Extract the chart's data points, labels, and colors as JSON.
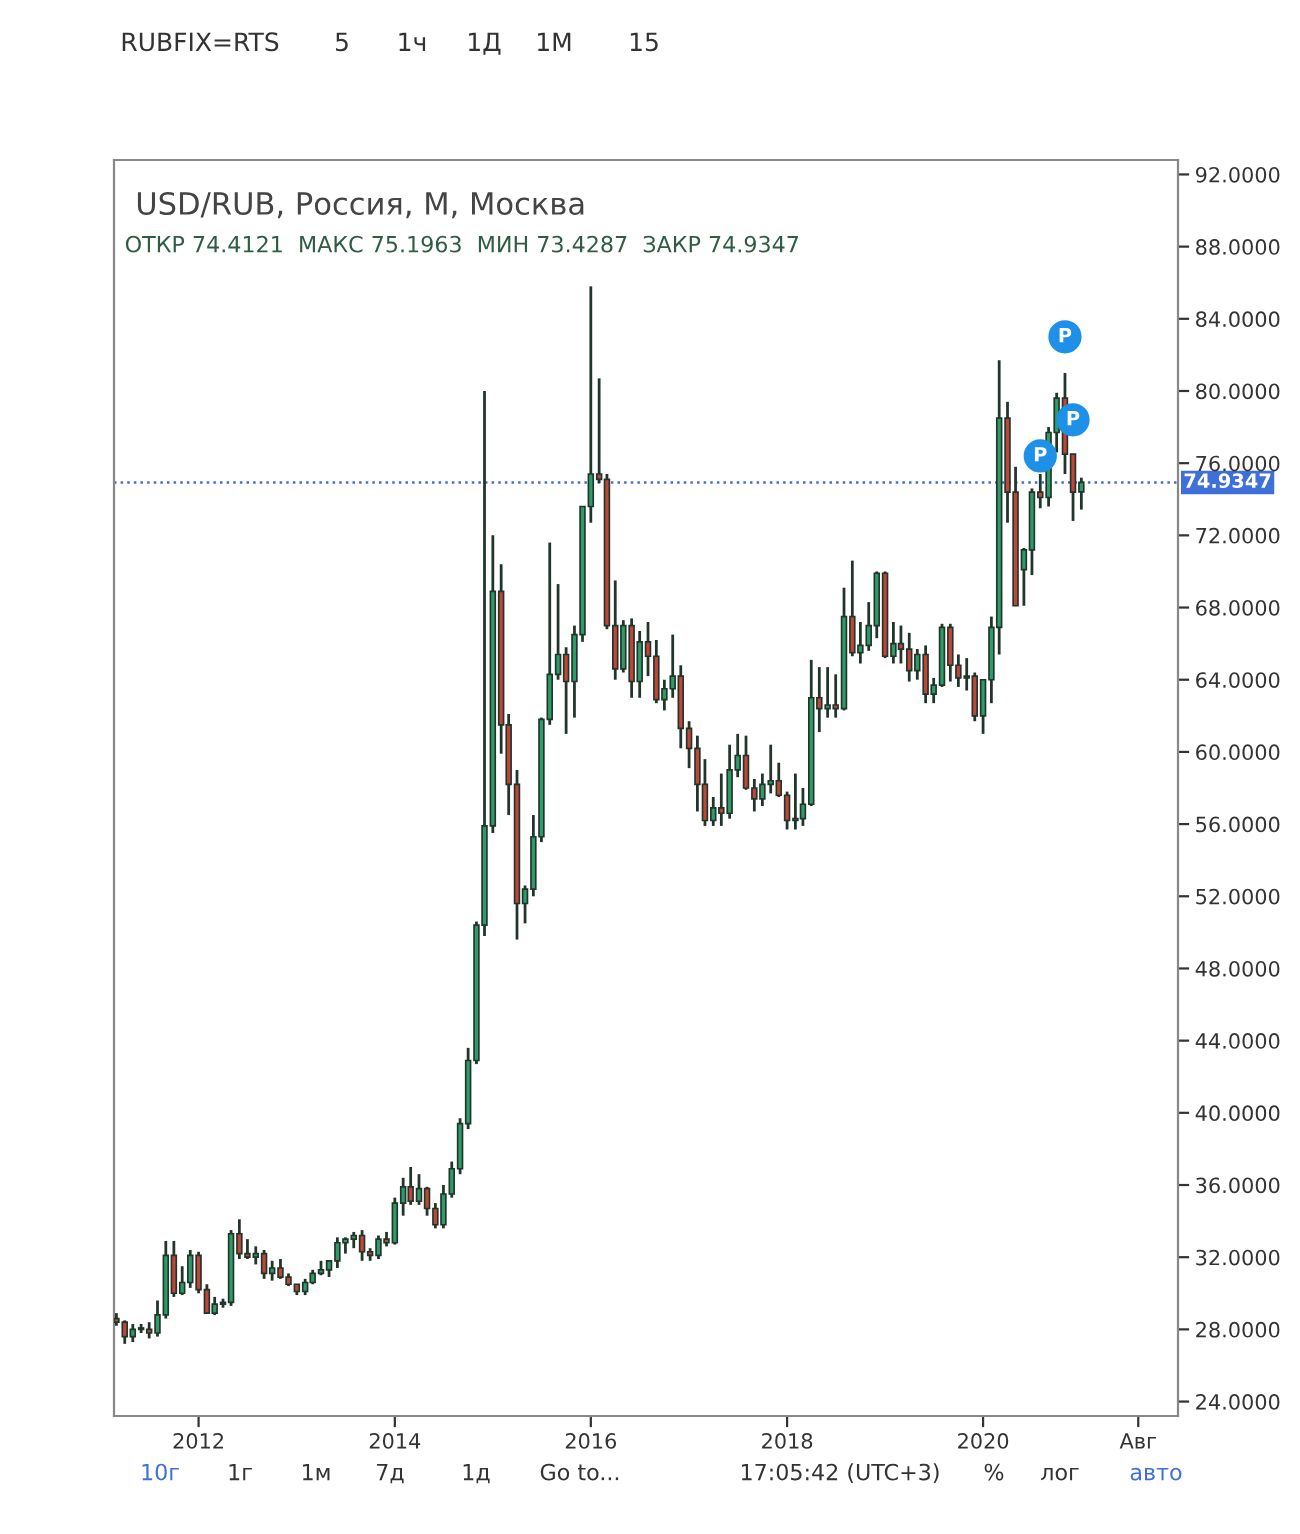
{
  "chart_data": {
    "type": "candlestick",
    "title": "USD/RUB, Россия, M, Москва",
    "subtitle": "ОТКР 74.4121  МАКС 75.1963  МИН 73.4287  ЗАКР 74.9347",
    "x": [
      "2011-03",
      "2011-04",
      "2011-05",
      "2011-06",
      "2011-07",
      "2011-08",
      "2011-09",
      "2011-10",
      "2011-11",
      "2011-12",
      "2012-01",
      "2012-02",
      "2012-03",
      "2012-04",
      "2012-05",
      "2012-06",
      "2012-07",
      "2012-08",
      "2012-09",
      "2012-10",
      "2012-11",
      "2012-12",
      "2013-01",
      "2013-02",
      "2013-03",
      "2013-04",
      "2013-05",
      "2013-06",
      "2013-07",
      "2013-08",
      "2013-09",
      "2013-10",
      "2013-11",
      "2013-12",
      "2014-01",
      "2014-02",
      "2014-03",
      "2014-04",
      "2014-05",
      "2014-06",
      "2014-07",
      "2014-08",
      "2014-09",
      "2014-10",
      "2014-11",
      "2014-12",
      "2015-01",
      "2015-02",
      "2015-03",
      "2015-04",
      "2015-05",
      "2015-06",
      "2015-07",
      "2015-08",
      "2015-09",
      "2015-10",
      "2015-11",
      "2015-12",
      "2016-01",
      "2016-02",
      "2016-03",
      "2016-04",
      "2016-05",
      "2016-06",
      "2016-07",
      "2016-08",
      "2016-09",
      "2016-10",
      "2016-11",
      "2016-12",
      "2017-01",
      "2017-02",
      "2017-03",
      "2017-04",
      "2017-05",
      "2017-06",
      "2017-07",
      "2017-08",
      "2017-09",
      "2017-10",
      "2017-11",
      "2017-12",
      "2018-01",
      "2018-02",
      "2018-03",
      "2018-04",
      "2018-05",
      "2018-06",
      "2018-07",
      "2018-08",
      "2018-09",
      "2018-10",
      "2018-11",
      "2018-12",
      "2019-01",
      "2019-02",
      "2019-03",
      "2019-04",
      "2019-05",
      "2019-06",
      "2019-07",
      "2019-08",
      "2019-09",
      "2019-10",
      "2019-11",
      "2019-12",
      "2020-01",
      "2020-02",
      "2020-03",
      "2020-04",
      "2020-05",
      "2020-06",
      "2020-07",
      "2020-08",
      "2020-09",
      "2020-10",
      "2020-11",
      "2020-12",
      "2021-01"
    ],
    "ohlc": [
      [
        28.6,
        28.9,
        28.2,
        28.4
      ],
      [
        28.4,
        28.5,
        27.2,
        27.6
      ],
      [
        27.6,
        28.3,
        27.3,
        28.0
      ],
      [
        28.0,
        28.3,
        27.8,
        28.0
      ],
      [
        28.0,
        28.4,
        27.5,
        27.8
      ],
      [
        27.8,
        29.6,
        27.6,
        28.8
      ],
      [
        28.8,
        32.9,
        28.6,
        32.1
      ],
      [
        32.1,
        32.9,
        29.8,
        30.0
      ],
      [
        30.0,
        31.5,
        29.9,
        30.6
      ],
      [
        30.6,
        32.4,
        30.3,
        32.1
      ],
      [
        32.1,
        32.3,
        30.0,
        30.2
      ],
      [
        30.2,
        30.5,
        28.9,
        28.9
      ],
      [
        28.9,
        29.8,
        28.8,
        29.4
      ],
      [
        29.4,
        29.7,
        29.2,
        29.5
      ],
      [
        29.5,
        33.5,
        29.3,
        33.3
      ],
      [
        33.3,
        34.1,
        31.9,
        32.2
      ],
      [
        32.2,
        33.0,
        31.9,
        32.0
      ],
      [
        32.0,
        32.6,
        31.6,
        32.2
      ],
      [
        32.2,
        32.4,
        30.8,
        31.1
      ],
      [
        31.1,
        31.8,
        30.7,
        31.4
      ],
      [
        31.4,
        31.9,
        30.8,
        30.9
      ],
      [
        30.9,
        31.1,
        30.4,
        30.5
      ],
      [
        30.5,
        30.5,
        29.9,
        30.1
      ],
      [
        30.1,
        30.8,
        29.9,
        30.6
      ],
      [
        30.6,
        31.3,
        30.5,
        31.1
      ],
      [
        31.1,
        31.8,
        31.0,
        31.3
      ],
      [
        31.3,
        31.8,
        30.9,
        31.8
      ],
      [
        31.8,
        33.1,
        31.4,
        32.8
      ],
      [
        32.8,
        33.1,
        32.2,
        33.0
      ],
      [
        33.0,
        33.4,
        32.5,
        33.2
      ],
      [
        33.2,
        33.5,
        31.8,
        32.3
      ],
      [
        32.3,
        32.5,
        31.8,
        32.1
      ],
      [
        32.1,
        33.2,
        31.9,
        33.0
      ],
      [
        33.0,
        33.4,
        32.6,
        32.8
      ],
      [
        32.8,
        35.3,
        32.7,
        35.0
      ],
      [
        35.0,
        36.4,
        34.3,
        35.9
      ],
      [
        35.9,
        37.0,
        34.9,
        35.1
      ],
      [
        35.1,
        36.6,
        34.9,
        35.8
      ],
      [
        35.8,
        35.9,
        34.3,
        34.7
      ],
      [
        34.7,
        35.0,
        33.6,
        33.8
      ],
      [
        33.8,
        36.0,
        33.6,
        35.5
      ],
      [
        35.5,
        37.3,
        35.3,
        36.9
      ],
      [
        36.9,
        39.7,
        36.6,
        39.4
      ],
      [
        39.4,
        43.6,
        39.1,
        42.9
      ],
      [
        42.9,
        50.6,
        42.7,
        50.4
      ],
      [
        50.4,
        80.0,
        49.8,
        55.9
      ],
      [
        55.9,
        72.0,
        55.5,
        68.9
      ],
      [
        68.9,
        70.4,
        59.9,
        61.5
      ],
      [
        61.5,
        62.1,
        56.5,
        58.2
      ],
      [
        58.2,
        59.0,
        49.6,
        51.6
      ],
      [
        51.6,
        52.6,
        50.5,
        52.4
      ],
      [
        52.4,
        56.5,
        52.0,
        55.3
      ],
      [
        55.3,
        61.9,
        55.0,
        61.8
      ],
      [
        61.8,
        71.6,
        61.5,
        64.3
      ],
      [
        64.3,
        69.3,
        64.0,
        65.4
      ],
      [
        65.4,
        65.8,
        61.0,
        63.9
      ],
      [
        63.9,
        67.0,
        61.9,
        66.5
      ],
      [
        66.5,
        73.6,
        66.1,
        73.6
      ],
      [
        73.6,
        85.8,
        72.7,
        75.4
      ],
      [
        75.4,
        80.7,
        74.9,
        75.1
      ],
      [
        75.1,
        75.4,
        66.8,
        67.0
      ],
      [
        67.0,
        69.5,
        64.0,
        64.6
      ],
      [
        64.6,
        67.3,
        64.4,
        67.0
      ],
      [
        67.0,
        67.4,
        63.0,
        63.9
      ],
      [
        63.9,
        66.7,
        63.0,
        66.1
      ],
      [
        66.1,
        67.2,
        64.2,
        65.3
      ],
      [
        65.3,
        66.2,
        62.7,
        62.9
      ],
      [
        62.9,
        64.0,
        62.3,
        63.5
      ],
      [
        63.5,
        66.5,
        63.0,
        64.2
      ],
      [
        64.2,
        64.8,
        60.2,
        61.3
      ],
      [
        61.3,
        61.7,
        59.1,
        60.2
      ],
      [
        60.2,
        60.9,
        56.7,
        58.2
      ],
      [
        58.2,
        59.6,
        55.9,
        56.2
      ],
      [
        56.2,
        57.5,
        55.9,
        56.9
      ],
      [
        56.9,
        58.8,
        55.9,
        56.6
      ],
      [
        56.6,
        60.4,
        56.3,
        59.0
      ],
      [
        59.0,
        61.0,
        58.6,
        59.8
      ],
      [
        59.8,
        60.9,
        57.9,
        58.0
      ],
      [
        58.0,
        58.5,
        56.7,
        57.4
      ],
      [
        57.4,
        58.8,
        57.0,
        58.2
      ],
      [
        58.2,
        60.4,
        57.7,
        58.4
      ],
      [
        58.4,
        59.4,
        57.5,
        57.6
      ],
      [
        57.6,
        57.8,
        55.7,
        56.2
      ],
      [
        56.2,
        58.8,
        55.7,
        56.3
      ],
      [
        56.3,
        58.0,
        55.9,
        57.1
      ],
      [
        57.1,
        65.1,
        57.0,
        63.0
      ],
      [
        63.0,
        64.7,
        61.1,
        62.4
      ],
      [
        62.4,
        64.7,
        61.9,
        62.6
      ],
      [
        62.6,
        64.3,
        61.9,
        62.4
      ],
      [
        62.4,
        69.1,
        62.3,
        67.5
      ],
      [
        67.5,
        70.6,
        65.3,
        65.5
      ],
      [
        65.5,
        67.2,
        64.9,
        65.9
      ],
      [
        65.9,
        68.3,
        65.6,
        67.0
      ],
      [
        67.0,
        70.0,
        66.3,
        69.9
      ],
      [
        69.9,
        70.0,
        65.2,
        65.3
      ],
      [
        65.3,
        67.2,
        64.9,
        66.0
      ],
      [
        66.0,
        67.0,
        64.9,
        65.7
      ],
      [
        65.7,
        66.6,
        63.9,
        64.5
      ],
      [
        64.5,
        65.7,
        64.0,
        65.4
      ],
      [
        65.4,
        65.9,
        62.7,
        63.2
      ],
      [
        63.2,
        64.1,
        62.7,
        63.7
      ],
      [
        63.7,
        67.1,
        63.6,
        66.9
      ],
      [
        66.9,
        67.1,
        63.9,
        64.8
      ],
      [
        64.8,
        65.4,
        63.6,
        64.1
      ],
      [
        64.1,
        65.2,
        63.4,
        64.2
      ],
      [
        64.2,
        64.4,
        61.7,
        62.0
      ],
      [
        62.0,
        64.0,
        61.0,
        64.0
      ],
      [
        64.0,
        67.5,
        62.7,
        66.9
      ],
      [
        66.9,
        81.7,
        65.4,
        78.5
      ],
      [
        78.5,
        79.4,
        72.7,
        74.4
      ],
      [
        74.4,
        75.8,
        68.1,
        68.1
      ],
      [
        70.1,
        71.3,
        68.1,
        71.2
      ],
      [
        71.2,
        74.6,
        69.8,
        74.4
      ],
      [
        74.4,
        75.4,
        73.5,
        74.1
      ],
      [
        74.1,
        78.0,
        73.6,
        77.7
      ],
      [
        77.7,
        79.9,
        76.6,
        79.6
      ],
      [
        79.6,
        81.0,
        75.4,
        76.5
      ],
      [
        76.5,
        76.5,
        72.8,
        74.4
      ],
      [
        74.4121,
        75.1963,
        73.4287,
        74.9347
      ]
    ],
    "colors": [
      "#c0463a",
      "#c0463a",
      "#2e9c6a",
      "#2e9c6a",
      "#c0463a",
      "#2e9c6a",
      "#2e9c6a",
      "#c0463a",
      "#2e9c6a",
      "#2e9c6a",
      "#c0463a",
      "#c0463a",
      "#2e9c6a",
      "#2e9c6a",
      "#2e9c6a",
      "#c0463a",
      "#c0463a",
      "#2e9c6a",
      "#c0463a",
      "#2e9c6a",
      "#c0463a",
      "#c0463a",
      "#c0463a",
      "#2e9c6a",
      "#2e9c6a",
      "#2e9c6a",
      "#2e9c6a",
      "#2e9c6a",
      "#2e9c6a",
      "#2e9c6a",
      "#c0463a",
      "#c0463a",
      "#2e9c6a",
      "#c0463a",
      "#2e9c6a",
      "#2e9c6a",
      "#c0463a",
      "#2e9c6a",
      "#c0463a",
      "#c0463a",
      "#2e9c6a",
      "#2e9c6a",
      "#2e9c6a",
      "#2e9c6a",
      "#2e9c6a",
      "#2e9c6a",
      "#2e9c6a",
      "#c0463a",
      "#c0463a",
      "#c0463a",
      "#2e9c6a",
      "#2e9c6a",
      "#2e9c6a",
      "#2e9c6a",
      "#2e9c6a",
      "#c0463a",
      "#2e9c6a",
      "#2e9c6a",
      "#2e9c6a",
      "#c0463a",
      "#c0463a",
      "#c0463a",
      "#2e9c6a",
      "#c0463a",
      "#2e9c6a",
      "#c0463a",
      "#c0463a",
      "#2e9c6a",
      "#2e9c6a",
      "#c0463a",
      "#c0463a",
      "#c0463a",
      "#c0463a",
      "#2e9c6a",
      "#c0463a",
      "#2e9c6a",
      "#2e9c6a",
      "#c0463a",
      "#c0463a",
      "#2e9c6a",
      "#2e9c6a",
      "#c0463a",
      "#c0463a",
      "#2e9c6a",
      "#2e9c6a",
      "#2e9c6a",
      "#c0463a",
      "#2e9c6a",
      "#c0463a",
      "#2e9c6a",
      "#c0463a",
      "#2e9c6a",
      "#2e9c6a",
      "#2e9c6a",
      "#c0463a",
      "#2e9c6a",
      "#c0463a",
      "#c0463a",
      "#2e9c6a",
      "#c0463a",
      "#2e9c6a",
      "#2e9c6a",
      "#c0463a",
      "#c0463a",
      "#2e9c6a",
      "#c0463a",
      "#2e9c6a",
      "#2e9c6a",
      "#2e9c6a",
      "#c0463a",
      "#c0463a",
      "#2e9c6a",
      "#2e9c6a",
      "#c0463a",
      "#2e9c6a",
      "#2e9c6a",
      "#c0463a",
      "#c0463a",
      "#2e9c6a"
    ],
    "xlim": [
      "2011-02-20",
      "2021-12-27"
    ],
    "xticks": [
      {
        "value": "2012-01-01",
        "label": "2012"
      },
      {
        "value": "2014-01-01",
        "label": "2014"
      },
      {
        "value": "2016-01-01",
        "label": "2016"
      },
      {
        "value": "2018-01-01",
        "label": "2018"
      },
      {
        "value": "2020-01-01",
        "label": "2020"
      },
      {
        "value": "2021-08-01",
        "label": "Авг"
      }
    ],
    "ylim": [
      23.2,
      92.8
    ],
    "yticks": [
      {
        "value": 24,
        "label": "24.0000"
      },
      {
        "value": 28,
        "label": "28.0000"
      },
      {
        "value": 32,
        "label": "32.0000"
      },
      {
        "value": 36,
        "label": "36.0000"
      },
      {
        "value": 40,
        "label": "40.0000"
      },
      {
        "value": 44,
        "label": "44.0000"
      },
      {
        "value": 48,
        "label": "48.0000"
      },
      {
        "value": 52,
        "label": "52.0000"
      },
      {
        "value": 56,
        "label": "56.0000"
      },
      {
        "value": 60,
        "label": "60.0000"
      },
      {
        "value": 64,
        "label": "64.0000"
      },
      {
        "value": 68,
        "label": "68.0000"
      },
      {
        "value": 72,
        "label": "72.0000"
      },
      {
        "value": 76,
        "label": "76.0000"
      },
      {
        "value": 80,
        "label": "80.0000"
      },
      {
        "value": 84,
        "label": "84.0000"
      },
      {
        "value": 88,
        "label": "88.0000"
      },
      {
        "value": 92,
        "label": "92.0000"
      }
    ],
    "ref_lines": [
      {
        "axis": "y",
        "value": 74.9347,
        "label": "74.9347",
        "color": "#3f6fd8",
        "line_style": "dotted"
      }
    ],
    "grid": false,
    "annotations": [
      {
        "text": "P",
        "x": "2020-08",
        "y": 76.4
      },
      {
        "text": "P",
        "x": "2020-11",
        "y": 83.0
      },
      {
        "text": "P",
        "x": "2020-12",
        "y": 78.4
      },
      "RUBFIX=RTS",
      "5",
      "1ч",
      "1Д",
      "1М",
      "15",
      "10г",
      "1г",
      "1м",
      "7д",
      "1д",
      "Go to...",
      "17:05:42 (UTC+3)",
      "%",
      "лог",
      "авто"
    ]
  }
}
